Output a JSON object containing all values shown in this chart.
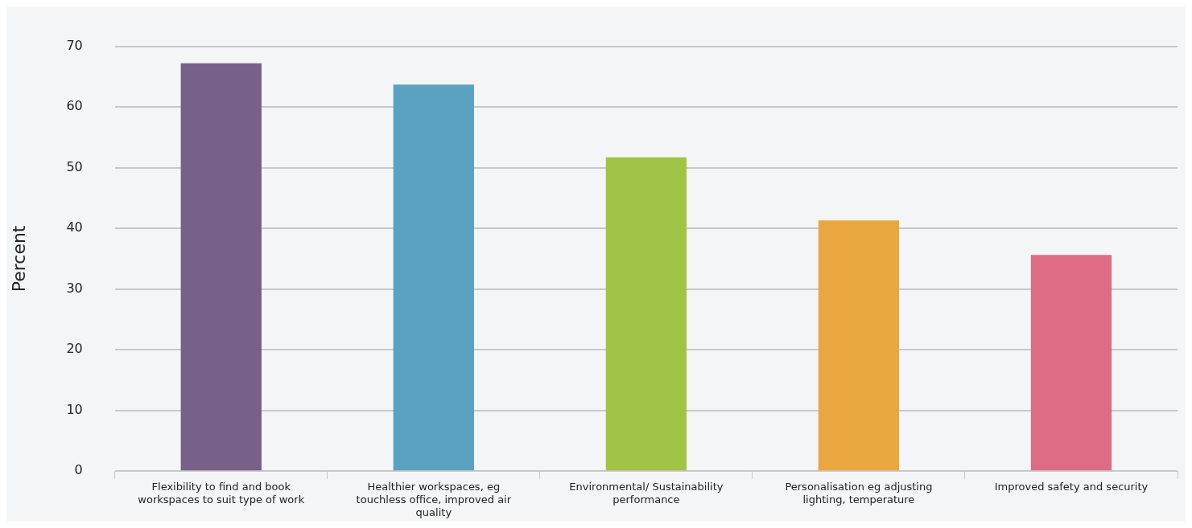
{
  "chart_data": {
    "type": "bar",
    "ylabel": "Percent",
    "categories": [
      "Flexibility to find and book workspaces to suit type of work",
      "Healthier workspaces, eg touchless office, improved air quality",
      "Environmental/ Sustainability performance",
      "Personalisation eg adjusting lighting, temperature",
      "Improved safety and security"
    ],
    "values": [
      67.2,
      63.7,
      51.7,
      41.3,
      35.6
    ],
    "colors": [
      "#776188",
      "#5ba1c0",
      "#a1c447",
      "#e9a740",
      "#df6c85"
    ],
    "ylim": [
      0,
      70
    ],
    "yticks": [
      0,
      10,
      20,
      30,
      40,
      50,
      60,
      70
    ],
    "grid": "y",
    "legend": false
  }
}
